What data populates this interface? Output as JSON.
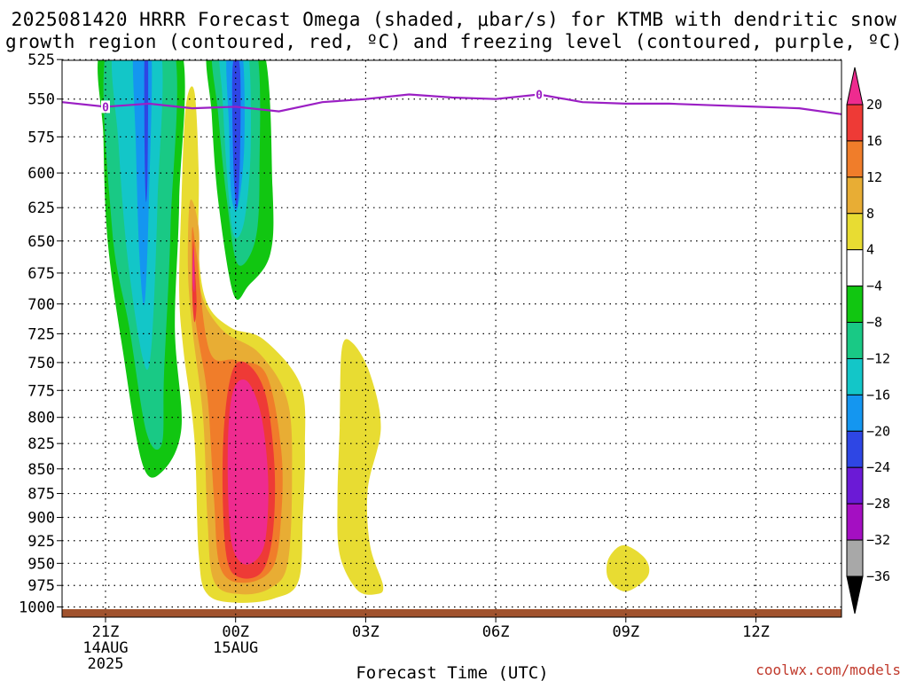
{
  "title": {
    "line1": "2025081420 HRRR Forecast Omega (shaded, μbar/s) for KTMB with dendritic snow",
    "line2": "growth region (contoured, red, ºC) and freezing level (contoured, purple, ºC)"
  },
  "credit": "coolwx.com/models",
  "colors": {
    "freezing_level": "#9b1fc4",
    "ground": "#a0522d"
  },
  "chart_data": {
    "type": "heatmap",
    "xlabel": "Forecast Time (UTC)",
    "ylabel": "",
    "y_axis": {
      "ticks": [
        525,
        550,
        575,
        600,
        625,
        650,
        675,
        700,
        725,
        750,
        775,
        800,
        825,
        850,
        875,
        900,
        925,
        950,
        975,
        1000
      ],
      "range": [
        1010,
        520
      ],
      "scale": "log-pressure",
      "units": "hPa"
    },
    "x_axis": {
      "range_hours": [
        -1,
        17
      ],
      "ticks": [
        {
          "label": "21Z",
          "sub": "14AUG",
          "sub2": "2025",
          "hour": 0
        },
        {
          "label": "00Z",
          "sub": "15AUG",
          "sub2": "",
          "hour": 3
        },
        {
          "label": "03Z",
          "sub": "",
          "sub2": "",
          "hour": 6
        },
        {
          "label": "06Z",
          "sub": "",
          "sub2": "",
          "hour": 9
        },
        {
          "label": "09Z",
          "sub": "",
          "sub2": "",
          "hour": 12
        },
        {
          "label": "12Z",
          "sub": "",
          "sub2": "",
          "hour": 15
        }
      ]
    },
    "grid": true,
    "colorbar": {
      "levels": [
        -36,
        -32,
        -28,
        -24,
        -20,
        -16,
        -12,
        -8,
        -4,
        4,
        8,
        12,
        16,
        20
      ],
      "labels": [
        "20",
        "16",
        "12",
        "8",
        "4",
        "−4",
        "−8",
        "−12",
        "−16",
        "−20",
        "−24",
        "−28",
        "−32",
        "−36"
      ],
      "bins": [
        {
          "range": "20+",
          "color": "#ee2b8f"
        },
        {
          "range": "16 to 20",
          "color": "#ee3a36"
        },
        {
          "range": "12 to 16",
          "color": "#f07d2a"
        },
        {
          "range": "8 to 12",
          "color": "#e8ad34"
        },
        {
          "range": "4 to 8",
          "color": "#e8dc32"
        },
        {
          "range": "-4 to 4",
          "color": "#ffffff"
        },
        {
          "range": "-8 to -4",
          "color": "#11c611"
        },
        {
          "range": "-12 to -8",
          "color": "#19c985"
        },
        {
          "range": "-16 to -12",
          "color": "#13c6c8"
        },
        {
          "range": "-20 to -16",
          "color": "#1496f0"
        },
        {
          "range": "-24 to -20",
          "color": "#2e46e4"
        },
        {
          "range": "-28 to -24",
          "color": "#6b1ad6"
        },
        {
          "range": "-32 to -28",
          "color": "#a40fc2"
        },
        {
          "range": "-36 to -32",
          "color": "#a8a8a8"
        },
        {
          "range": "below -36",
          "color": "#000000"
        }
      ]
    },
    "freezing_level": {
      "label": "0",
      "hours": [
        -1,
        0,
        1,
        2,
        3,
        4,
        5,
        6,
        7,
        8,
        9,
        10,
        11,
        12,
        13,
        14,
        15,
        16,
        17
      ],
      "pressure": [
        552,
        555,
        553,
        556,
        555,
        558,
        552,
        550,
        547,
        549,
        550,
        547,
        552,
        553,
        553,
        554,
        555,
        556,
        560
      ],
      "label_points": [
        {
          "hour": 0,
          "pressure": 555
        },
        {
          "hour": 10,
          "pressure": 547
        }
      ]
    },
    "omega_features": [
      {
        "sign": "negative",
        "time_hours": [
          0,
          1.8
        ],
        "pressure": [
          525,
          855
        ],
        "peak": -20,
        "description_levels": [
          -4,
          -8,
          -12,
          -16,
          -20
        ]
      },
      {
        "sign": "negative",
        "time_hours": [
          2.5,
          4.0
        ],
        "pressure": [
          525,
          690
        ],
        "peak": -24,
        "description_levels": [
          -4,
          -8,
          -12,
          -16,
          -20,
          -24
        ]
      },
      {
        "sign": "positive",
        "time_hours": [
          1.7,
          4.7
        ],
        "pressure": [
          560,
          995
        ],
        "peak": 20,
        "description_levels": [
          4,
          8,
          12,
          16,
          20
        ]
      },
      {
        "sign": "positive",
        "time_hours": [
          5.3,
          6.8
        ],
        "pressure": [
          735,
          980
        ],
        "peak": 4,
        "description_levels": [
          4
        ]
      },
      {
        "sign": "positive",
        "time_hours": [
          11.5,
          12.5
        ],
        "pressure": [
          930,
          982
        ],
        "peak": 4,
        "description_levels": [
          4
        ]
      }
    ]
  }
}
